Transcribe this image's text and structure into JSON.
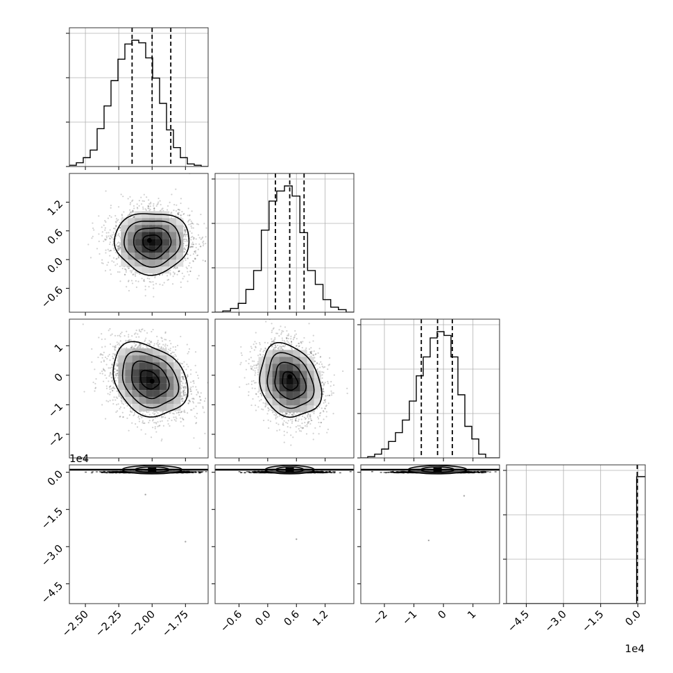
{
  "chart_data": {
    "type": "corner",
    "grid": true,
    "parameters": [
      {
        "range": [
          -2.62,
          -1.58
        ],
        "ticks": [
          -2.5,
          -2.25,
          -2.0,
          -1.75
        ],
        "tick_labels": [
          "−2.50",
          "−2.25",
          "−2.00",
          "−1.75"
        ],
        "offset_label": ""
      },
      {
        "range": [
          -1.1,
          1.8
        ],
        "ticks": [
          -0.6,
          0.0,
          0.6,
          1.2
        ],
        "tick_labels": [
          "−0.6",
          "0.0",
          "0.6",
          "1.2"
        ],
        "offset_label": ""
      },
      {
        "range": [
          -2.8,
          1.9
        ],
        "ticks": [
          -2,
          -1,
          0,
          1
        ],
        "tick_labels": [
          "−2",
          "−1",
          "0",
          "1"
        ],
        "offset_label": ""
      },
      {
        "range": [
          -5.3,
          0.3
        ],
        "ticks": [
          -4.5,
          -3.0,
          -1.5,
          0.0
        ],
        "tick_labels": [
          "−4.5",
          "−3.0",
          "−1.5",
          "0.0"
        ],
        "offset_label": "1e4"
      }
    ],
    "histograms": [
      {
        "counts": [
          1,
          3,
          7,
          13,
          30,
          48,
          68,
          85,
          97,
          100,
          98,
          86,
          70,
          50,
          29,
          15,
          7,
          2,
          1,
          0
        ],
        "quantiles": [
          -2.15,
          -2.0,
          -1.86
        ]
      },
      {
        "counts": [
          0,
          1,
          3,
          7,
          18,
          33,
          65,
          88,
          96,
          100,
          92,
          63,
          33,
          22,
          10,
          4,
          2,
          0
        ],
        "quantiles": [
          0.16,
          0.46,
          0.76
        ]
      },
      {
        "counts": [
          0,
          1,
          3,
          7,
          13,
          20,
          30,
          45,
          65,
          80,
          95,
          100,
          97,
          80,
          50,
          25,
          15,
          3,
          0,
          0
        ],
        "quantiles": [
          -0.75,
          -0.2,
          0.3
        ]
      },
      {
        "counts": [
          0,
          100
        ],
        "quantiles": [
          -0.02,
          -0.02,
          -0.02
        ]
      }
    ],
    "pairs": [
      {
        "row": 1,
        "col": 0,
        "mean": [
          -2.0,
          0.36
        ],
        "sd": [
          0.14,
          0.32
        ],
        "corr": 0.0,
        "peak": [
          -2.02,
          0.4
        ]
      },
      {
        "row": 2,
        "col": 0,
        "mean": [
          -2.02,
          -0.15
        ],
        "sd": [
          0.14,
          0.62
        ],
        "corr": -0.25,
        "peak": [
          -2.0,
          -0.2
        ]
      },
      {
        "row": 2,
        "col": 1,
        "mean": [
          0.46,
          -0.2
        ],
        "sd": [
          0.32,
          0.62
        ],
        "corr": -0.2,
        "peak": [
          0.46,
          -0.05
        ]
      },
      {
        "row": 3,
        "col": 0,
        "mean": [
          -2.0,
          0.0
        ],
        "sd": [
          0.14,
          0.0
        ],
        "corr": 0.0,
        "peak": [
          -2.0,
          0.0
        ]
      },
      {
        "row": 3,
        "col": 1,
        "mean": [
          0.46,
          0.0
        ],
        "sd": [
          0.32,
          0.0
        ],
        "corr": 0.0,
        "peak": [
          0.46,
          0.0
        ]
      },
      {
        "row": 3,
        "col": 2,
        "mean": [
          -0.2,
          0.0
        ],
        "sd": [
          0.62,
          0.0
        ],
        "corr": 0.0,
        "peak": [
          -0.2,
          0.0
        ]
      }
    ],
    "outliers": [
      {
        "col": 0,
        "x": -2.05,
        "y": -0.9
      },
      {
        "col": 0,
        "x": -1.75,
        "y": -2.8
      },
      {
        "col": 1,
        "x": 0.6,
        "y": -2.7
      },
      {
        "col": 2,
        "x": 0.7,
        "y": -0.95
      },
      {
        "col": 2,
        "x": -0.5,
        "y": -2.75
      }
    ]
  }
}
